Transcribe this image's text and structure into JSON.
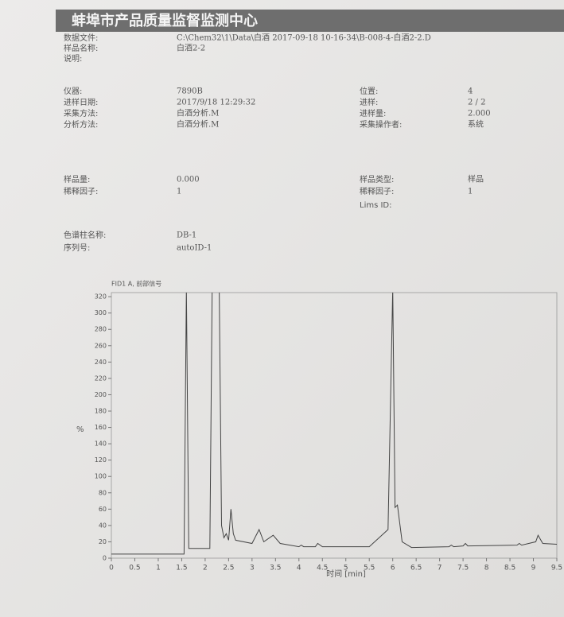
{
  "header": {
    "title": "蚌埠市产品质量监督监测中心"
  },
  "left_fields": [
    {
      "label": "数据文件:",
      "value": "C:\\Chem32\\1\\Data\\白酒 2017-09-18 10-16-34\\B-008-4-白酒2-2.D"
    },
    {
      "label": "样品名称:",
      "value": "白酒2-2"
    },
    {
      "label": "说明:"
    },
    {
      "label": "仪器:",
      "value": "7890B"
    },
    {
      "label": "进样日期:",
      "value": "2017/9/18 12:29:32"
    },
    {
      "label": "采集方法:",
      "value": "白酒分析.M"
    },
    {
      "label": "分析方法:",
      "value": "白酒分析.M"
    },
    {
      "label": "样品量:",
      "value": "0.000"
    },
    {
      "label": "稀释因子:",
      "value": "1"
    },
    {
      "label": "色谱柱名称:",
      "value": "DB-1"
    },
    {
      "label": "序列号:",
      "value": "autoID-1"
    }
  ],
  "right_fields": [
    {
      "label": "位置:",
      "value": "4"
    },
    {
      "label": "进样:",
      "value": "2 / 2"
    },
    {
      "label": "进样量:",
      "value": "2.000"
    },
    {
      "label": "采集操作者:",
      "value": "系统"
    },
    {
      "label": "样品类型:",
      "value": "样品"
    },
    {
      "label": "稀释因子:",
      "value": "1"
    },
    {
      "label": "Lims ID:"
    }
  ],
  "chart_data": {
    "type": "line",
    "title": "FID1 A, 前部信号",
    "x_label": "时间 [min]",
    "y_label": "%",
    "color": "#444444",
    "x": [
      0,
      1.55,
      1.6,
      1.65,
      2.1,
      2.15,
      2.3,
      2.35,
      2.4,
      2.45,
      2.5,
      2.55,
      2.6,
      2.65,
      3.0,
      3.15,
      3.25,
      3.45,
      3.6,
      4.0,
      4.05,
      4.1,
      4.35,
      4.4,
      4.5,
      5.5,
      5.9,
      6.0,
      6.05,
      6.1,
      6.2,
      6.4,
      7.2,
      7.25,
      7.3,
      7.5,
      7.55,
      7.6,
      8.65,
      8.7,
      8.75,
      9.05,
      9.1,
      9.2,
      9.5
    ],
    "values": [
      5,
      5,
      330,
      12,
      12,
      330,
      330,
      40,
      25,
      30,
      22,
      60,
      30,
      22,
      18,
      35,
      20,
      28,
      18,
      14,
      16,
      14,
      14,
      18,
      14,
      14,
      35,
      330,
      62,
      65,
      20,
      13,
      14,
      16,
      14,
      15,
      18,
      15,
      16,
      18,
      16,
      20,
      28,
      18,
      17
    ],
    "xlim": [
      0,
      9.5
    ],
    "ylim": [
      0,
      325
    ],
    "xticks": [
      0,
      0.5,
      1,
      1.5,
      2,
      2.5,
      3,
      3.5,
      4,
      4.5,
      5,
      5.5,
      6,
      6.5,
      7,
      7.5,
      8,
      8.5,
      9,
      9.5
    ],
    "yticks": [
      0,
      20,
      40,
      60,
      80,
      100,
      120,
      140,
      160,
      180,
      200,
      220,
      240,
      260,
      280,
      300,
      320
    ],
    "grid": false
  }
}
